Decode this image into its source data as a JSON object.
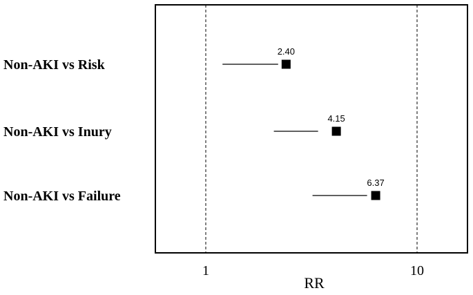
{
  "chart_data": {
    "type": "forest",
    "title": "",
    "xlabel": "RR",
    "ylabel": "",
    "x_scale": "log",
    "xlim": [
      0.8,
      15
    ],
    "x_ticks": [
      1,
      10
    ],
    "x_tick_labels": [
      "1",
      "10"
    ],
    "reference_lines": [
      1,
      10
    ],
    "grid": false,
    "categories": [
      "Non-AKI vs Risk",
      "Non-AKI vs Inury",
      "Non-AKI vs Failure"
    ],
    "values": [
      2.4,
      4.15,
      6.37
    ],
    "value_labels": [
      "2.40",
      "4.15",
      "6.37"
    ],
    "ci_low": [
      1.2,
      2.1,
      3.2
    ],
    "ci_high": [
      2.2,
      3.4,
      5.8
    ],
    "marker_color": "#000000"
  }
}
